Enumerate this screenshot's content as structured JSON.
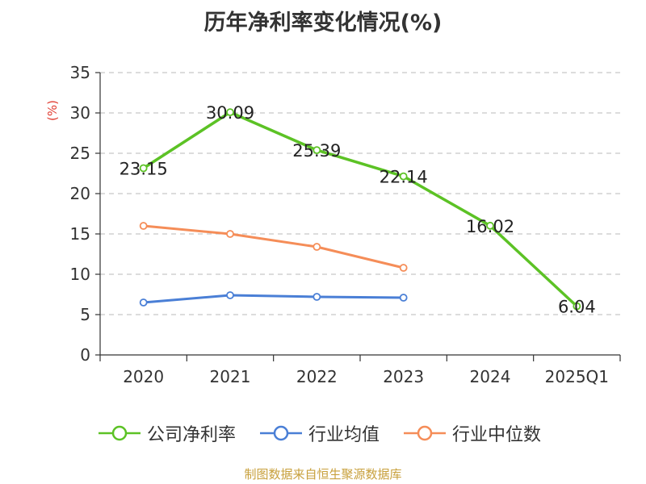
{
  "title": "历年净利率变化情况(%)",
  "y_unit": "(%)",
  "source": "制图数据来自恒生聚源数据库",
  "legend": [
    {
      "label": "公司净利率",
      "color": "#5cc225"
    },
    {
      "label": "行业均值",
      "color": "#4a7fd6"
    },
    {
      "label": "行业中位数",
      "color": "#f58d58"
    }
  ],
  "chart_data": {
    "type": "line",
    "title": "历年净利率变化情况(%)",
    "ylabel": "(%)",
    "ylim": [
      0,
      35
    ],
    "yticks": [
      0,
      5,
      10,
      15,
      20,
      25,
      30,
      35
    ],
    "grid": true,
    "legend_position": "bottom",
    "categories": [
      "2020",
      "2021",
      "2022",
      "2023",
      "2024",
      "2025Q1"
    ],
    "series": [
      {
        "name": "公司净利率",
        "color": "#5cc225",
        "values": [
          23.15,
          30.09,
          25.39,
          22.14,
          16.02,
          6.04
        ],
        "labels": [
          "23.15",
          "30.09",
          "25.39",
          "22.14",
          "16.02",
          "6.04"
        ]
      },
      {
        "name": "行业均值",
        "color": "#4a7fd6",
        "values": [
          6.5,
          7.4,
          7.2,
          7.1,
          null,
          null
        ]
      },
      {
        "name": "行业中位数",
        "color": "#f58d58",
        "values": [
          16.0,
          15.0,
          13.4,
          10.8,
          null,
          null
        ]
      }
    ]
  }
}
